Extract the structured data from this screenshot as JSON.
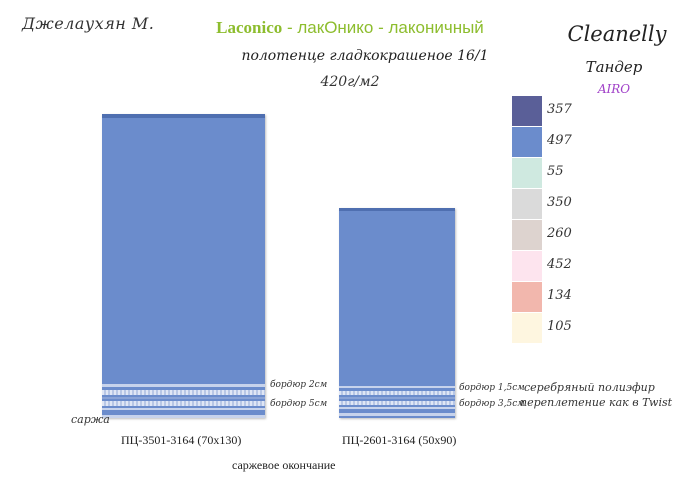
{
  "header": {
    "author": "Джелаухян М.",
    "brand": "Laconico",
    "title_rest": " - лакОнико - лаконичный",
    "subtitle": "полотенце гладкокрашеное 16/1",
    "weight": "420г/м2"
  },
  "logo": {
    "name": "Cleanelly",
    "line": "Тандер",
    "sub": "AIRO"
  },
  "towels": [
    {
      "label": "ПЦ-3501-3164 (70х130)",
      "border_a": "бордюр 2см",
      "border_b": "бордюр 5см"
    },
    {
      "label": "ПЦ-2601-3164 (50х90)",
      "border_a": "бордюр 1,5см",
      "border_b": "бордюр 3,5см"
    }
  ],
  "notes": {
    "twill": "саржа",
    "silver_polyester": "серебряный полиэфир",
    "twist_weave": "переплетение как в Twist",
    "twill_ending": "саржевое окончание"
  },
  "colors": {
    "towel_blue": "#6b8ccc"
  },
  "palette": [
    {
      "code": "357",
      "color": "#5a5f98"
    },
    {
      "code": "497",
      "color": "#6b8ccc"
    },
    {
      "code": "55",
      "color": "#cfe9e0"
    },
    {
      "code": "350",
      "color": "#dadada"
    },
    {
      "code": "260",
      "color": "#ddd3cf"
    },
    {
      "code": "452",
      "color": "#fde4ee"
    },
    {
      "code": "134",
      "color": "#f2b7ad"
    },
    {
      "code": "105",
      "color": "#fef6e0"
    }
  ]
}
